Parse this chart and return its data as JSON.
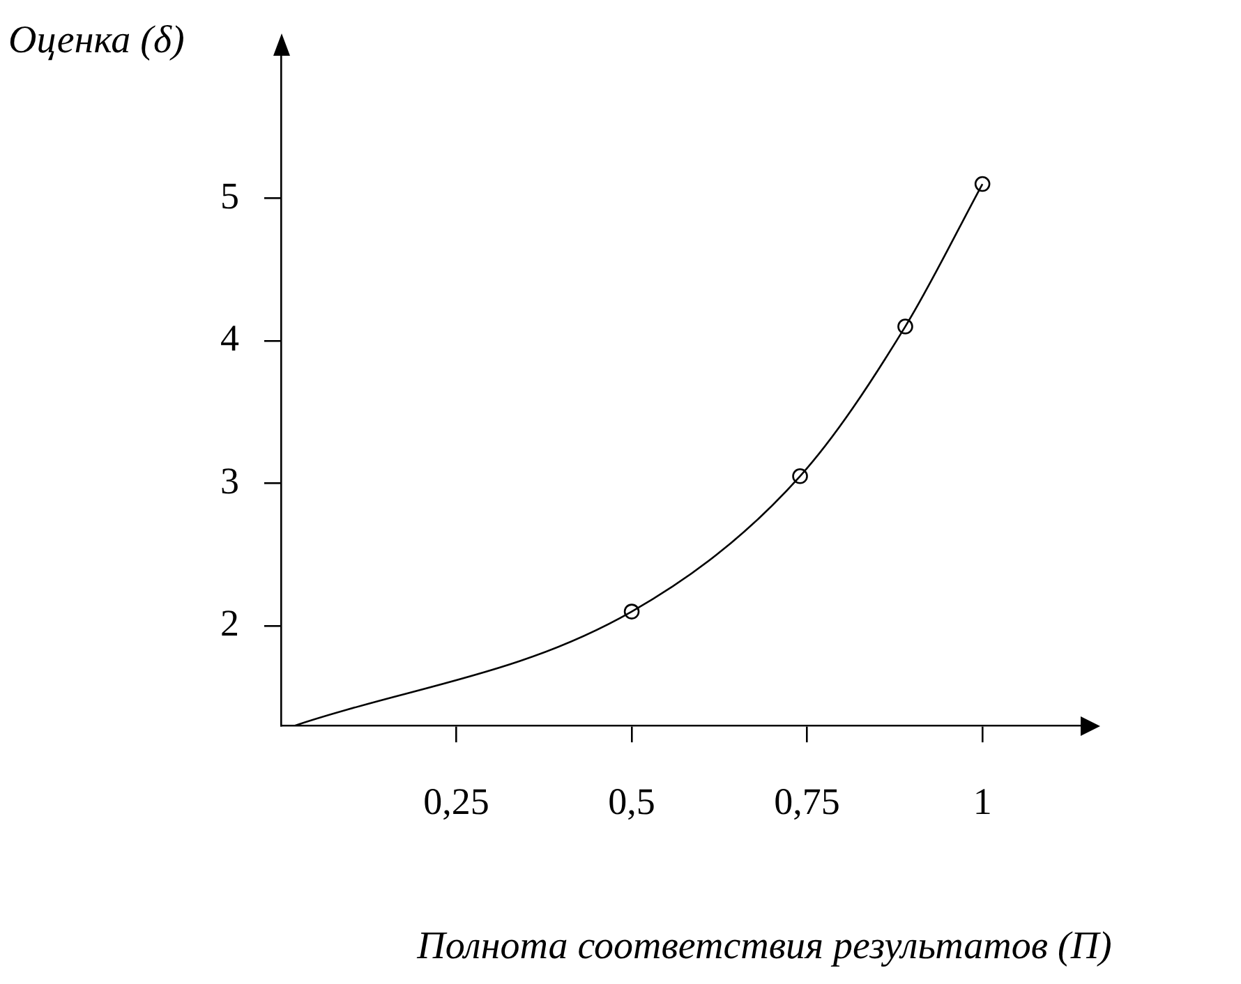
{
  "chart_data": {
    "type": "line",
    "xlabel": "Полнота соответствия результатов (П)",
    "ylabel": "Оценка (δ)",
    "xlim": [
      0,
      1.14
    ],
    "ylim": [
      1.3,
      6
    ],
    "xticks": [
      {
        "value": 0.25,
        "label": "0,25"
      },
      {
        "value": 0.5,
        "label": "0,5"
      },
      {
        "value": 0.75,
        "label": "0,75"
      },
      {
        "value": 1,
        "label": "1"
      }
    ],
    "yticks": [
      2,
      3,
      4,
      5
    ],
    "series": [
      {
        "color": "#000000",
        "marker": "none",
        "x": [
          0.02,
          0.5,
          0.74,
          0.89,
          1
        ],
        "values": [
          1.3,
          2.1,
          3.05,
          4.1,
          5.1
        ]
      },
      {
        "type": "scatter",
        "color": "#000000",
        "marker": "circle",
        "x": [
          0.5,
          0.74,
          0.89,
          1
        ],
        "values": [
          2.1,
          3.05,
          4.1,
          5.1
        ]
      }
    ]
  }
}
